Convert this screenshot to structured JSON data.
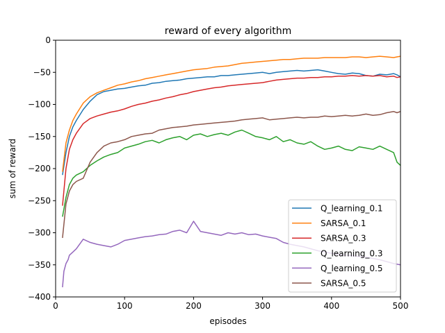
{
  "chart_data": {
    "type": "line",
    "title": "reward of every algorithm",
    "xlabel": "episodes",
    "ylabel": "sum of reward",
    "xlim": [
      0,
      500
    ],
    "ylim": [
      -400,
      0
    ],
    "xticks": [
      0,
      100,
      200,
      300,
      400,
      500
    ],
    "yticks": [
      0,
      -50,
      -100,
      -150,
      -200,
      -250,
      -300,
      -350,
      -400
    ],
    "grid": false,
    "legend_position": "lower-right",
    "series": [
      {
        "name": "Q_learning_0.1",
        "color": "#1f77b4",
        "x": [
          10,
          15,
          20,
          25,
          30,
          40,
          50,
          60,
          70,
          80,
          90,
          100,
          110,
          120,
          130,
          140,
          150,
          160,
          170,
          180,
          190,
          200,
          210,
          220,
          230,
          240,
          250,
          260,
          270,
          280,
          290,
          300,
          310,
          320,
          330,
          340,
          350,
          360,
          370,
          380,
          390,
          400,
          410,
          420,
          430,
          440,
          450,
          460,
          470,
          480,
          490,
          495,
          500
        ],
        "y": [
          -210,
          -175,
          -150,
          -135,
          -125,
          -108,
          -95,
          -85,
          -80,
          -78,
          -76,
          -75,
          -73,
          -71,
          -70,
          -67,
          -66,
          -64,
          -63,
          -62,
          -60,
          -59,
          -58,
          -57,
          -57,
          -55,
          -55,
          -54,
          -53,
          -52,
          -51,
          -50,
          -52,
          -50,
          -49,
          -48,
          -47,
          -48,
          -47,
          -46,
          -48,
          -50,
          -52,
          -53,
          -51,
          -52,
          -55,
          -56,
          -53,
          -54,
          -52,
          -54,
          -57
        ]
      },
      {
        "name": "SARSA_0.1",
        "color": "#ff7f0e",
        "x": [
          10,
          15,
          20,
          25,
          30,
          40,
          50,
          60,
          70,
          80,
          90,
          100,
          110,
          120,
          130,
          140,
          150,
          160,
          170,
          180,
          190,
          200,
          210,
          220,
          230,
          240,
          250,
          260,
          270,
          280,
          290,
          300,
          310,
          320,
          330,
          340,
          350,
          360,
          370,
          380,
          390,
          400,
          410,
          420,
          430,
          440,
          450,
          460,
          470,
          480,
          490,
          495,
          500
        ],
        "y": [
          -205,
          -160,
          -140,
          -125,
          -115,
          -98,
          -88,
          -82,
          -78,
          -74,
          -70,
          -68,
          -65,
          -63,
          -60,
          -58,
          -56,
          -54,
          -52,
          -50,
          -48,
          -46,
          -45,
          -44,
          -42,
          -41,
          -40,
          -38,
          -36,
          -35,
          -34,
          -33,
          -32,
          -31,
          -30,
          -30,
          -29,
          -28,
          -28,
          -28,
          -27,
          -27,
          -27,
          -27,
          -26,
          -26,
          -27,
          -26,
          -25,
          -26,
          -27,
          -26,
          -25
        ]
      },
      {
        "name": "SARSA_0.3",
        "color": "#d62728",
        "x": [
          10,
          15,
          20,
          25,
          30,
          40,
          50,
          60,
          70,
          80,
          90,
          100,
          110,
          120,
          130,
          140,
          150,
          160,
          170,
          180,
          190,
          200,
          210,
          220,
          230,
          240,
          250,
          260,
          270,
          280,
          290,
          300,
          310,
          320,
          330,
          340,
          350,
          360,
          370,
          380,
          390,
          400,
          410,
          420,
          430,
          440,
          450,
          460,
          470,
          480,
          490,
          495,
          500
        ],
        "y": [
          -258,
          -200,
          -170,
          -155,
          -145,
          -130,
          -122,
          -118,
          -115,
          -112,
          -110,
          -107,
          -103,
          -100,
          -98,
          -95,
          -93,
          -90,
          -88,
          -85,
          -83,
          -80,
          -78,
          -76,
          -74,
          -73,
          -71,
          -70,
          -69,
          -68,
          -67,
          -66,
          -64,
          -62,
          -61,
          -60,
          -59,
          -59,
          -58,
          -58,
          -57,
          -57,
          -56,
          -56,
          -55,
          -56,
          -55,
          -56,
          -55,
          -57,
          -56,
          -58,
          -57
        ]
      },
      {
        "name": "Q_learning_0.3",
        "color": "#2ca02c",
        "x": [
          10,
          15,
          20,
          25,
          30,
          40,
          50,
          60,
          70,
          80,
          90,
          100,
          110,
          120,
          130,
          140,
          150,
          160,
          170,
          180,
          190,
          200,
          210,
          220,
          230,
          240,
          250,
          260,
          270,
          280,
          290,
          300,
          310,
          320,
          330,
          340,
          350,
          360,
          370,
          380,
          390,
          400,
          410,
          420,
          430,
          440,
          450,
          460,
          470,
          480,
          490,
          495,
          500
        ],
        "y": [
          -275,
          -245,
          -225,
          -215,
          -210,
          -205,
          -195,
          -188,
          -182,
          -178,
          -175,
          -168,
          -165,
          -162,
          -158,
          -156,
          -160,
          -155,
          -152,
          -150,
          -155,
          -148,
          -146,
          -150,
          -147,
          -145,
          -148,
          -143,
          -140,
          -145,
          -150,
          -152,
          -155,
          -150,
          -158,
          -155,
          -160,
          -162,
          -158,
          -165,
          -170,
          -168,
          -165,
          -170,
          -172,
          -166,
          -168,
          -170,
          -165,
          -170,
          -175,
          -190,
          -195
        ]
      },
      {
        "name": "Q_learning_0.5",
        "color": "#9467bd",
        "x": [
          10,
          12,
          15,
          18,
          20,
          25,
          30,
          40,
          50,
          60,
          70,
          80,
          90,
          100,
          110,
          120,
          130,
          140,
          150,
          160,
          170,
          180,
          190,
          200,
          210,
          220,
          230,
          240,
          250,
          260,
          270,
          280,
          290,
          300,
          310,
          320,
          330,
          340,
          350,
          360,
          370,
          380,
          390,
          400,
          410,
          420,
          430,
          440,
          450,
          460,
          470,
          480,
          490,
          500
        ],
        "y": [
          -385,
          -360,
          -348,
          -342,
          -335,
          -330,
          -325,
          -310,
          -315,
          -318,
          -320,
          -322,
          -318,
          -312,
          -310,
          -308,
          -306,
          -305,
          -303,
          -302,
          -298,
          -296,
          -300,
          -282,
          -298,
          -300,
          -302,
          -304,
          -300,
          -302,
          -300,
          -303,
          -302,
          -305,
          -307,
          -309,
          -315,
          -318,
          -320,
          -322,
          -325,
          -328,
          -330,
          -332,
          -334,
          -335,
          -336,
          -337,
          -338,
          -340,
          -342,
          -345,
          -348,
          -350
        ]
      },
      {
        "name": "SARSA_0.5",
        "color": "#8c564b",
        "x": [
          10,
          15,
          20,
          25,
          30,
          40,
          50,
          60,
          70,
          80,
          90,
          100,
          110,
          120,
          130,
          140,
          150,
          160,
          170,
          180,
          190,
          200,
          210,
          220,
          230,
          240,
          250,
          260,
          270,
          280,
          290,
          300,
          310,
          320,
          330,
          340,
          350,
          360,
          370,
          380,
          390,
          400,
          410,
          420,
          430,
          440,
          450,
          460,
          470,
          480,
          490,
          495,
          500
        ],
        "y": [
          -308,
          -255,
          -235,
          -225,
          -220,
          -215,
          -190,
          -175,
          -165,
          -160,
          -158,
          -155,
          -150,
          -148,
          -146,
          -145,
          -140,
          -138,
          -136,
          -135,
          -134,
          -132,
          -131,
          -130,
          -129,
          -128,
          -127,
          -126,
          -124,
          -123,
          -122,
          -121,
          -124,
          -123,
          -122,
          -121,
          -120,
          -121,
          -120,
          -120,
          -118,
          -119,
          -118,
          -117,
          -118,
          -117,
          -115,
          -117,
          -116,
          -113,
          -111,
          -113,
          -111
        ]
      }
    ]
  }
}
